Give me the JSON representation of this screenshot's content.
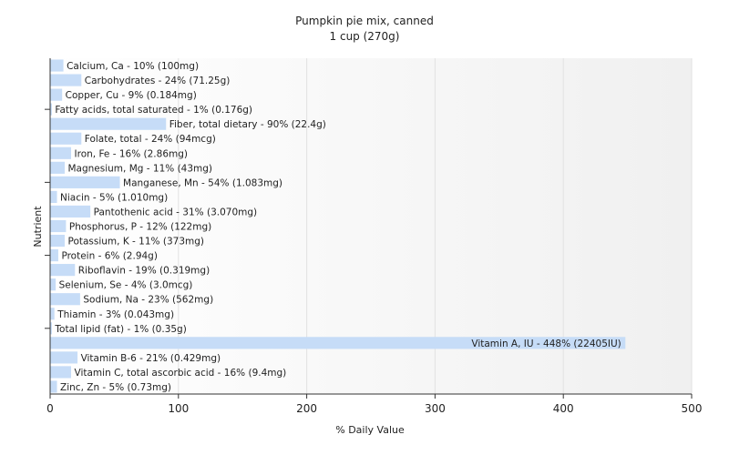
{
  "chart_data": {
    "type": "bar",
    "orientation": "horizontal",
    "title": "Pumpkin pie mix, canned",
    "subtitle": "1 cup (270g)",
    "xlabel": "% Daily Value",
    "ylabel": "Nutrient",
    "xlim": [
      0,
      500
    ],
    "xticks": [
      "0",
      "100",
      "200",
      "300",
      "400",
      "500"
    ],
    "grid": true,
    "legend": "none",
    "bar_color": "#c6dcf7",
    "categories": [
      "Calcium, Ca",
      "Carbohydrates",
      "Copper, Cu",
      "Fatty acids, total saturated",
      "Fiber, total dietary",
      "Folate, total",
      "Iron, Fe",
      "Magnesium, Mg",
      "Manganese, Mn",
      "Niacin",
      "Pantothenic acid",
      "Phosphorus, P",
      "Potassium, K",
      "Protein",
      "Riboflavin",
      "Selenium, Se",
      "Sodium, Na",
      "Thiamin",
      "Total lipid (fat)",
      "Vitamin A, IU",
      "Vitamin B-6",
      "Vitamin C, total ascorbic acid",
      "Zinc, Zn"
    ],
    "values": [
      10,
      24,
      9,
      1,
      90,
      24,
      16,
      11,
      54,
      5,
      31,
      12,
      11,
      6,
      19,
      4,
      23,
      3,
      1,
      448,
      21,
      16,
      5
    ],
    "labels": [
      "Calcium, Ca - 10% (100mg)",
      "Carbohydrates - 24% (71.25g)",
      "Copper, Cu - 9% (0.184mg)",
      "Fatty acids, total saturated - 1% (0.176g)",
      "Fiber, total dietary - 90% (22.4g)",
      "Folate, total - 24% (94mcg)",
      "Iron, Fe - 16% (2.86mg)",
      "Magnesium, Mg - 11% (43mg)",
      "Manganese, Mn - 54% (1.083mg)",
      "Niacin - 5% (1.010mg)",
      "Pantothenic acid - 31% (3.070mg)",
      "Phosphorus, P - 12% (122mg)",
      "Potassium, K - 11% (373mg)",
      "Protein - 6% (2.94g)",
      "Riboflavin - 19% (0.319mg)",
      "Selenium, Se - 4% (3.0mcg)",
      "Sodium, Na - 23% (562mg)",
      "Thiamin - 3% (0.043mg)",
      "Total lipid (fat) - 1% (0.35g)",
      "Vitamin A, IU - 448% (22405IU)",
      "Vitamin B-6 - 21% (0.429mg)",
      "Vitamin C, total ascorbic acid - 16% (9.4mg)",
      "Zinc, Zn - 5% (0.73mg)"
    ]
  }
}
